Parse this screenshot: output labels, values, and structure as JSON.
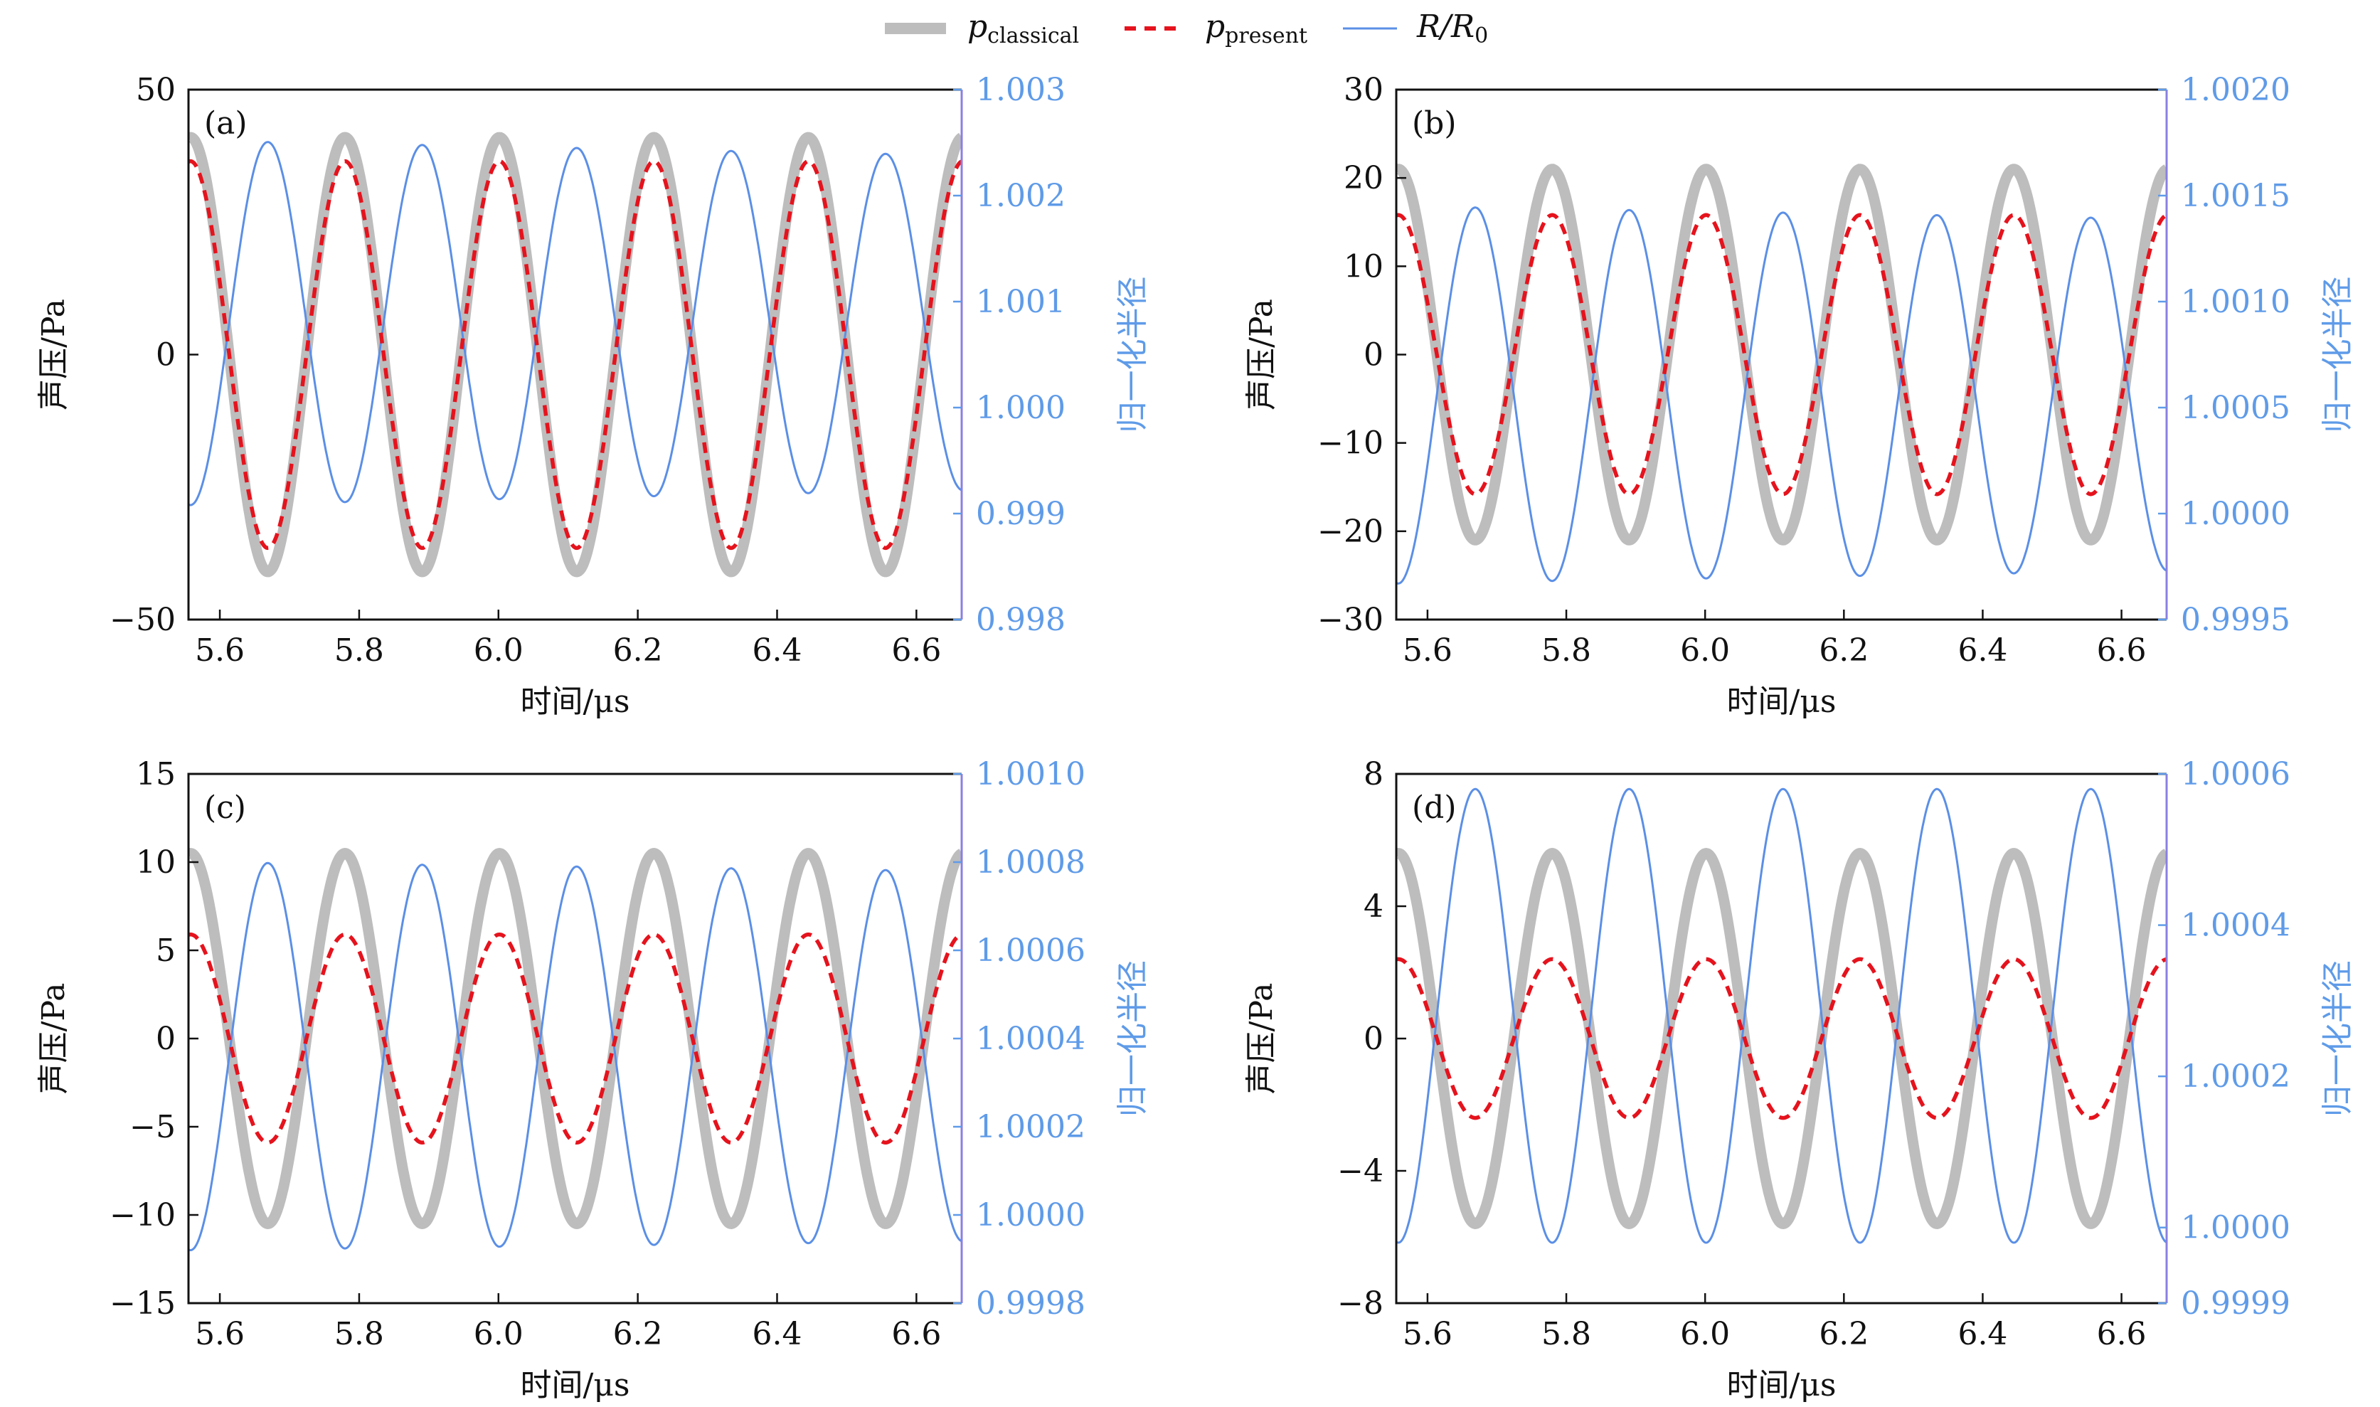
{
  "legend": {
    "classical": {
      "symbol": "p",
      "sub": "classical"
    },
    "present": {
      "symbol": "p",
      "sub": "present"
    },
    "radius": {
      "label": "R/R",
      "sub": "0"
    }
  },
  "colors": {
    "classical": "#bdbdbd",
    "present": "#e5131d",
    "radius": "#5b8fe6",
    "right_axis": "#5f9be8",
    "right_spine": "#8a7fe0"
  },
  "chart_data": [
    {
      "type": "line",
      "panel": "(a)",
      "xlabel": "时间/μs",
      "ylabel": "声压/Pa",
      "ylabel_right": "归一化半径",
      "xlim": [
        5.555,
        6.665
      ],
      "xticks": [
        "5.6",
        "5.8",
        "6.0",
        "6.2",
        "6.4",
        "6.6"
      ],
      "ylim": [
        -50,
        50
      ],
      "yticks": [
        "−50",
        "0",
        "50"
      ],
      "ytick_values": [
        -50,
        0,
        50
      ],
      "ylim_right": [
        0.998,
        1.003
      ],
      "yticks_right": [
        "0.998",
        "0.999",
        "1.000",
        "1.001",
        "1.002",
        "1.003"
      ],
      "frequency_MHz": 4.51,
      "phase_peak_us": 5.558,
      "series": [
        {
          "name": "p_classical",
          "amplitude": 41
        },
        {
          "name": "p_present",
          "amplitude": 36.5
        },
        {
          "name": "R/R0",
          "mean": 1.0008,
          "amplitude": 0.00172,
          "amplitude_end": 0.00158
        }
      ]
    },
    {
      "type": "line",
      "panel": "(b)",
      "xlabel": "时间/μs",
      "ylabel": "声压/Pa",
      "ylabel_right": "归一化半径",
      "xlim": [
        5.555,
        6.665
      ],
      "xticks": [
        "5.6",
        "5.8",
        "6.0",
        "6.2",
        "6.4",
        "6.6"
      ],
      "ylim": [
        -30,
        30
      ],
      "yticks": [
        "−30",
        "−20",
        "−10",
        "0",
        "10",
        "20",
        "30"
      ],
      "ytick_values": [
        -30,
        -20,
        -10,
        0,
        10,
        20,
        30
      ],
      "ylim_right": [
        0.9995,
        1.002
      ],
      "yticks_right": [
        "0.9995",
        "1.0000",
        "1.0005",
        "1.0010",
        "1.0015",
        "1.0020"
      ],
      "frequency_MHz": 4.51,
      "phase_peak_us": 5.558,
      "series": [
        {
          "name": "p_classical",
          "amplitude": 21
        },
        {
          "name": "p_present",
          "amplitude": 15.8
        },
        {
          "name": "R/R0",
          "mean": 1.00056,
          "amplitude": 0.00089,
          "amplitude_end": 0.00083
        }
      ]
    },
    {
      "type": "line",
      "panel": "(c)",
      "xlabel": "时间/μs",
      "ylabel": "声压/Pa",
      "ylabel_right": "归一化半径",
      "xlim": [
        5.555,
        6.665
      ],
      "xticks": [
        "5.6",
        "5.8",
        "6.0",
        "6.2",
        "6.4",
        "6.6"
      ],
      "ylim": [
        -15,
        15
      ],
      "yticks": [
        "−15",
        "−10",
        "−5",
        "0",
        "5",
        "10",
        "15"
      ],
      "ytick_values": [
        -15,
        -10,
        -5,
        0,
        5,
        10,
        15
      ],
      "ylim_right": [
        0.9998,
        1.001
      ],
      "yticks_right": [
        "0.9998",
        "1.0000",
        "1.0002",
        "1.0004",
        "1.0006",
        "1.0008",
        "1.0010"
      ],
      "frequency_MHz": 4.51,
      "phase_peak_us": 5.558,
      "series": [
        {
          "name": "p_classical",
          "amplitude": 10.5
        },
        {
          "name": "p_present",
          "amplitude": 5.9
        },
        {
          "name": "R/R0",
          "mean": 1.00036,
          "amplitude": 0.00044,
          "amplitude_end": 0.00042
        }
      ]
    },
    {
      "type": "line",
      "panel": "(d)",
      "xlabel": "时间/μs",
      "ylabel": "声压/Pa",
      "ylabel_right": "归一化半径",
      "xlim": [
        5.555,
        6.665
      ],
      "xticks": [
        "5.6",
        "5.8",
        "6.0",
        "6.2",
        "6.4",
        "6.6"
      ],
      "ylim": [
        -8,
        8
      ],
      "yticks": [
        "−8",
        "−4",
        "0",
        "4",
        "8"
      ],
      "ytick_values": [
        -8,
        -4,
        0,
        4,
        8
      ],
      "ylim_right": [
        0.9999,
        1.0006
      ],
      "yticks_right": [
        "0.9999",
        "1.0000",
        "1.0002",
        "1.0004",
        "1.0006"
      ],
      "frequency_MHz": 4.51,
      "phase_peak_us": 5.558,
      "series": [
        {
          "name": "p_classical",
          "amplitude": 5.6
        },
        {
          "name": "p_present",
          "amplitude": 2.4
        },
        {
          "name": "R/R0",
          "mean": 1.00028,
          "amplitude": 0.0003,
          "amplitude_end": 0.0003
        }
      ]
    }
  ]
}
